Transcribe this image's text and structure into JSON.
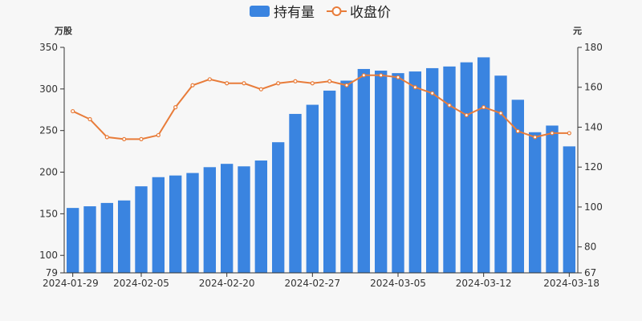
{
  "colors": {
    "bar": "#3a84e0",
    "line": "#e87c3a",
    "axis": "#333333",
    "background": "#f7f7f7"
  },
  "chart_data": {
    "type": "bar",
    "legend_position": "top-center",
    "grid": false,
    "left_axis": {
      "unit_label": "万股",
      "range": [
        79,
        350
      ],
      "ticks": [
        79,
        100,
        150,
        200,
        250,
        300,
        350
      ]
    },
    "right_axis": {
      "unit_label": "元",
      "range": [
        67,
        180
      ],
      "ticks": [
        67,
        80,
        100,
        120,
        140,
        160,
        180
      ]
    },
    "x_tick_labels": [
      "2024-01-29",
      "2024-02-05",
      "2024-02-20",
      "2024-02-27",
      "2024-03-05",
      "2024-03-12",
      "2024-03-18"
    ],
    "x_tick_indices": [
      0,
      4,
      9,
      14,
      19,
      24,
      29
    ],
    "series": [
      {
        "name": "持有量",
        "type": "bar",
        "axis": "left",
        "values": [
          157,
          159,
          163,
          166,
          183,
          194,
          196,
          199,
          206,
          210,
          207,
          214,
          236,
          270,
          281,
          298,
          310,
          324,
          322,
          319,
          321,
          325,
          327,
          332,
          338,
          316,
          287,
          248,
          256,
          231
        ]
      },
      {
        "name": "收盘价",
        "type": "line",
        "axis": "right",
        "values": [
          148,
          144,
          135,
          134,
          134,
          136,
          150,
          161,
          164,
          162,
          162,
          159,
          162,
          163,
          162,
          163,
          161,
          166,
          166,
          165,
          160,
          157,
          151,
          146,
          150,
          147,
          138,
          135,
          137,
          137
        ]
      }
    ]
  }
}
